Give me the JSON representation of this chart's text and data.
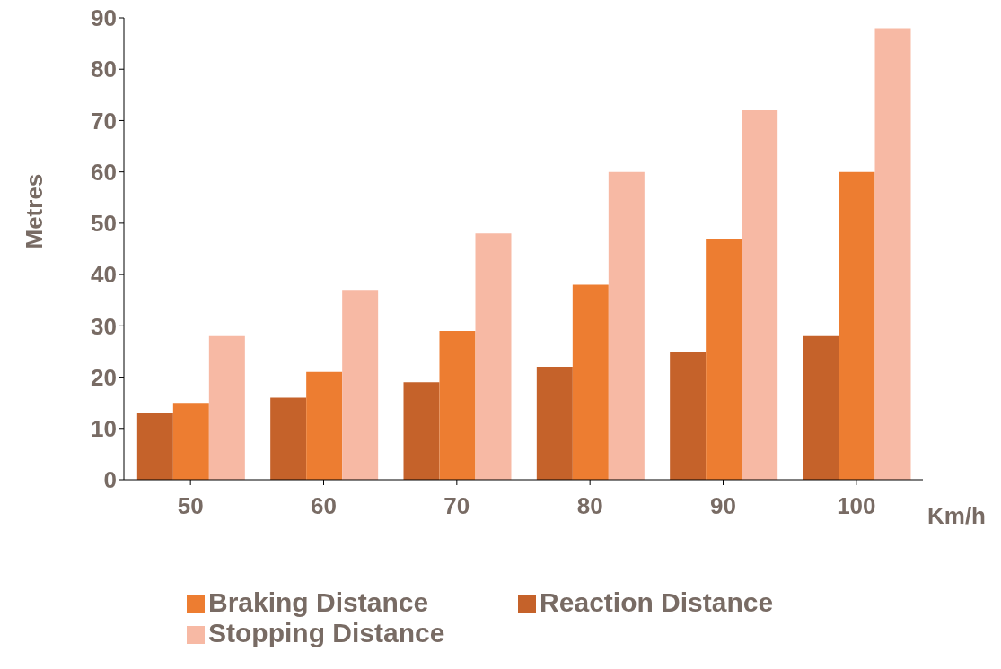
{
  "chart_data": {
    "type": "bar",
    "xlabel": "Km/h",
    "ylabel": "Metres",
    "categories": [
      "50",
      "60",
      "70",
      "80",
      "90",
      "100"
    ],
    "series": [
      {
        "name": "Reaction Distance",
        "color": "#c5622a",
        "values": [
          13,
          16,
          19,
          22,
          25,
          28
        ]
      },
      {
        "name": "Braking Distance",
        "color": "#ed7d31",
        "values": [
          15,
          21,
          29,
          38,
          47,
          60
        ]
      },
      {
        "name": "Stopping Distance",
        "color": "#f7b9a4",
        "values": [
          28,
          37,
          48,
          60,
          72,
          88
        ]
      }
    ],
    "ylim": [
      0,
      90
    ],
    "yticks": [
      0,
      10,
      20,
      30,
      40,
      50,
      60,
      70,
      80,
      90
    ],
    "grid": false,
    "legend": "bottom"
  }
}
